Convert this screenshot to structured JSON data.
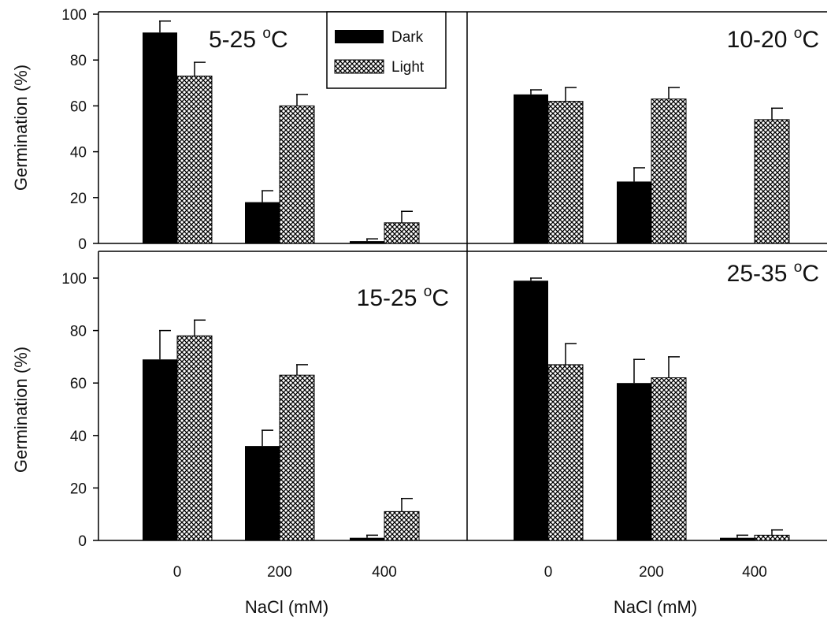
{
  "chart_data": {
    "type": "bar",
    "categories": [
      "0",
      "200",
      "400"
    ],
    "xlabel": "NaCl (mM)",
    "ylabel": "Germination (%)",
    "ylim": [
      0,
      100
    ],
    "yticks": [
      "0",
      "20",
      "40",
      "60",
      "80",
      "100"
    ],
    "legend": {
      "placement": "top-right of top-left panel",
      "entries": [
        "Dark",
        "Light"
      ]
    },
    "colors": {
      "dark": "#000000",
      "light_pattern": "#000000",
      "background": "#ffffff"
    },
    "panels": [
      {
        "title_main": "5-25 ",
        "title_sup": "o",
        "title_unit": "C",
        "series": [
          {
            "name": "Dark",
            "values": [
              92,
              18,
              1
            ],
            "errors": [
              5,
              5,
              1
            ]
          },
          {
            "name": "Light",
            "values": [
              73,
              60,
              9
            ],
            "errors": [
              6,
              5,
              5
            ]
          }
        ]
      },
      {
        "title_main": "10-20 ",
        "title_sup": "o",
        "title_unit": "C",
        "series": [
          {
            "name": "Dark",
            "values": [
              65,
              27,
              0
            ],
            "errors": [
              2,
              6,
              0
            ]
          },
          {
            "name": "Light",
            "values": [
              62,
              63,
              54
            ],
            "errors": [
              6,
              5,
              5
            ]
          }
        ]
      },
      {
        "title_main": "15-25 ",
        "title_sup": "o",
        "title_unit": "C",
        "series": [
          {
            "name": "Dark",
            "values": [
              69,
              36,
              1
            ],
            "errors": [
              11,
              6,
              1
            ]
          },
          {
            "name": "Light",
            "values": [
              78,
              63,
              11
            ],
            "errors": [
              6,
              4,
              5
            ]
          }
        ]
      },
      {
        "title_main": "25-35 ",
        "title_sup": "o",
        "title_unit": "C",
        "series": [
          {
            "name": "Dark",
            "values": [
              99,
              60,
              1
            ],
            "errors": [
              1,
              9,
              1
            ]
          },
          {
            "name": "Light",
            "values": [
              67,
              62,
              2
            ],
            "errors": [
              8,
              8,
              2
            ]
          }
        ]
      }
    ]
  }
}
